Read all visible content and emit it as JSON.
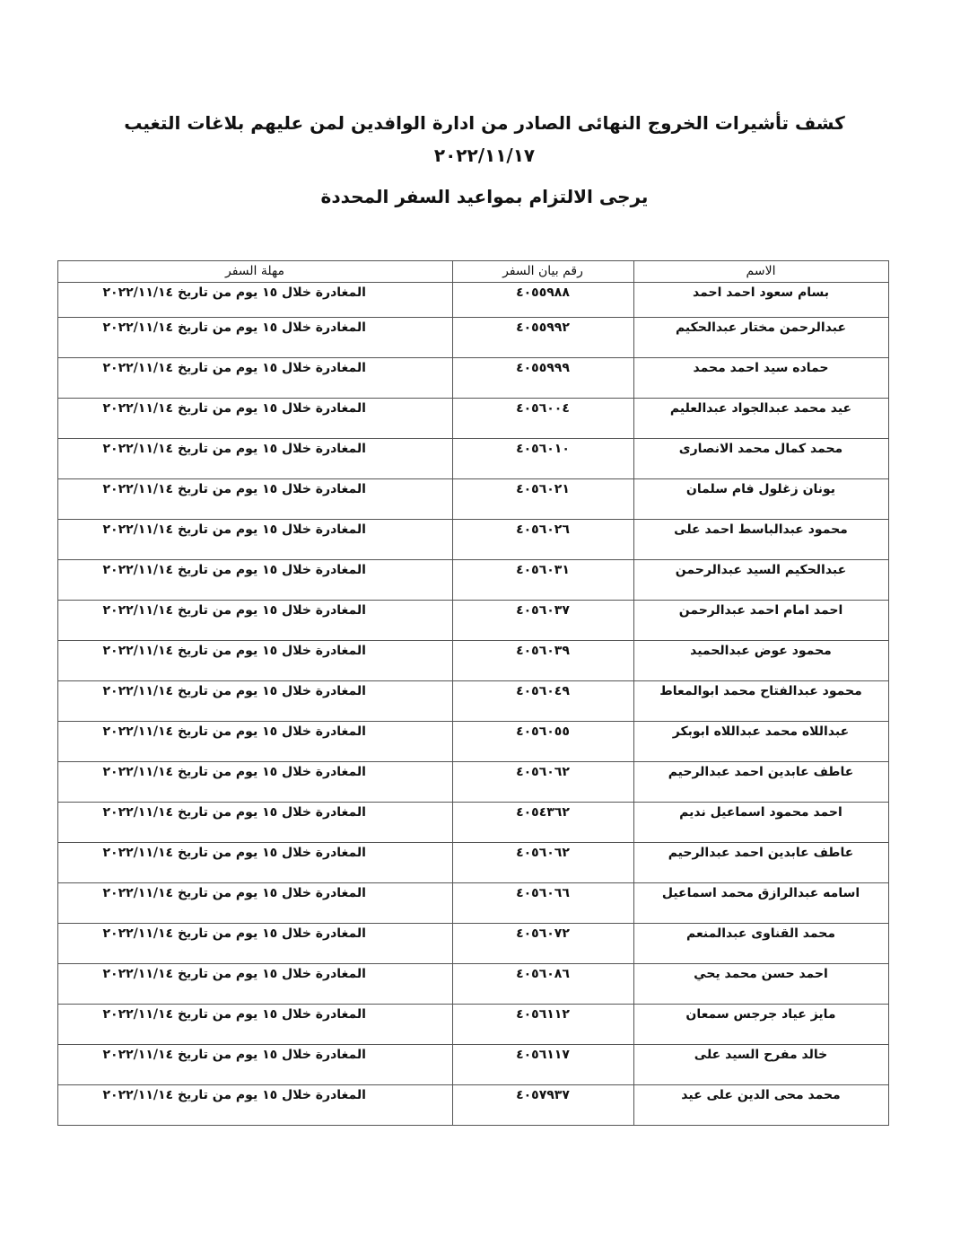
{
  "header": {
    "title": "كشف تأشيرات الخروج النهائى الصادر من ادارة الوافدين لمن عليهم بلاغات التغيب",
    "date": "٢٠٢٢/١١/١٧",
    "subtitle": "يرجى الالتزام بمواعيد السفر المحددة"
  },
  "table": {
    "columns": [
      "الاسم",
      "رقم بيان السفر",
      "مهلة السفر"
    ],
    "rows": [
      {
        "name": "بسام سعود احمد احمد",
        "number": "٤٠٥٥٩٨٨",
        "deadline": "المغادرة خلال  ١٥ يوم من تاريخ ٢٠٢٢/١١/١٤"
      },
      {
        "name": "عبدالرحمن مختار  عبدالحكيم",
        "number": "٤٠٥٥٩٩٢",
        "deadline": "المغادرة خلال  ١٥ يوم من تاريخ ٢٠٢٢/١١/١٤"
      },
      {
        "name": "حماده سيد احمد محمد",
        "number": "٤٠٥٥٩٩٩",
        "deadline": "المغادرة خلال  ١٥ يوم من تاريخ ٢٠٢٢/١١/١٤"
      },
      {
        "name": "عيد محمد عبدالجواد عبدالعليم",
        "number": "٤٠٥٦٠٠٤",
        "deadline": "المغادرة خلال  ١٥ يوم من تاريخ ٢٠٢٢/١١/١٤"
      },
      {
        "name": "محمد كمال محمد الانصارى",
        "number": "٤٠٥٦٠١٠",
        "deadline": "المغادرة خلال  ١٥ يوم من تاريخ ٢٠٢٢/١١/١٤"
      },
      {
        "name": "يونان زغلول فام سلمان",
        "number": "٤٠٥٦٠٢١",
        "deadline": "المغادرة خلال  ١٥ يوم من تاريخ ٢٠٢٢/١١/١٤"
      },
      {
        "name": "محمود عبدالباسط احمد على",
        "number": "٤٠٥٦٠٢٦",
        "deadline": "المغادرة خلال  ١٥ يوم من تاريخ ٢٠٢٢/١١/١٤"
      },
      {
        "name": "عبدالحكيم السيد عبدالرحمن",
        "number": "٤٠٥٦٠٣١",
        "deadline": "المغادرة خلال  ١٥ يوم من تاريخ ٢٠٢٢/١١/١٤"
      },
      {
        "name": "احمد امام احمد عبدالرحمن",
        "number": "٤٠٥٦٠٣٧",
        "deadline": "المغادرة خلال  ١٥ يوم من تاريخ ٢٠٢٢/١١/١٤"
      },
      {
        "name": "محمود عوض عبدالحميد",
        "number": "٤٠٥٦٠٣٩",
        "deadline": "المغادرة خلال  ١٥ يوم من تاريخ ٢٠٢٢/١١/١٤"
      },
      {
        "name": "محمود عبدالفتاح محمد ابوالمعاط",
        "number": "٤٠٥٦٠٤٩",
        "deadline": "المغادرة خلال  ١٥ يوم من تاريخ ٢٠٢٢/١١/١٤"
      },
      {
        "name": "عبداللاه محمد عبداللاه ابوبكر",
        "number": "٤٠٥٦٠٥٥",
        "deadline": "المغادرة خلال  ١٥ يوم من تاريخ ٢٠٢٢/١١/١٤"
      },
      {
        "name": "عاطف عابدين احمد عبدالرحيم",
        "number": "٤٠٥٦٠٦٢",
        "deadline": "المغادرة خلال  ١٥ يوم من تاريخ ٢٠٢٢/١١/١٤"
      },
      {
        "name": "احمد محمود اسماعيل نديم",
        "number": "٤٠٥٤٣٦٢",
        "deadline": "المغادرة خلال  ١٥ يوم من تاريخ ٢٠٢٢/١١/١٤"
      },
      {
        "name": "عاطف عابدين احمد عبدالرحيم",
        "number": "٤٠٥٦٠٦٢",
        "deadline": "المغادرة خلال  ١٥ يوم من تاريخ ٢٠٢٢/١١/١٤"
      },
      {
        "name": "اسامه عبدالرازق محمد اسماعيل",
        "number": "٤٠٥٦٠٦٦",
        "deadline": "المغادرة خلال  ١٥ يوم من تاريخ ٢٠٢٢/١١/١٤"
      },
      {
        "name": "محمد القناوى عبدالمنعم",
        "number": "٤٠٥٦٠٧٢",
        "deadline": "المغادرة خلال  ١٥ يوم من تاريخ ٢٠٢٢/١١/١٤"
      },
      {
        "name": "احمد حسن محمد يحي",
        "number": "٤٠٥٦٠٨٦",
        "deadline": "المغادرة خلال  ١٥ يوم من تاريخ ٢٠٢٢/١١/١٤"
      },
      {
        "name": "مايز عياد جرجس سمعان",
        "number": "٤٠٥٦١١٢",
        "deadline": "المغادرة خلال  ١٥ يوم من تاريخ ٢٠٢٢/١١/١٤"
      },
      {
        "name": "خالد مفرح السيد على",
        "number": "٤٠٥٦١١٧",
        "deadline": "المغادرة خلال  ١٥ يوم من تاريخ ٢٠٢٢/١١/١٤"
      },
      {
        "name": "محمد محى الدين على عيد",
        "number": "٤٠٥٧٩٣٧",
        "deadline": "المغادرة خلال  ١٥ يوم من تاريخ ٢٠٢٢/١١/١٤"
      }
    ]
  }
}
